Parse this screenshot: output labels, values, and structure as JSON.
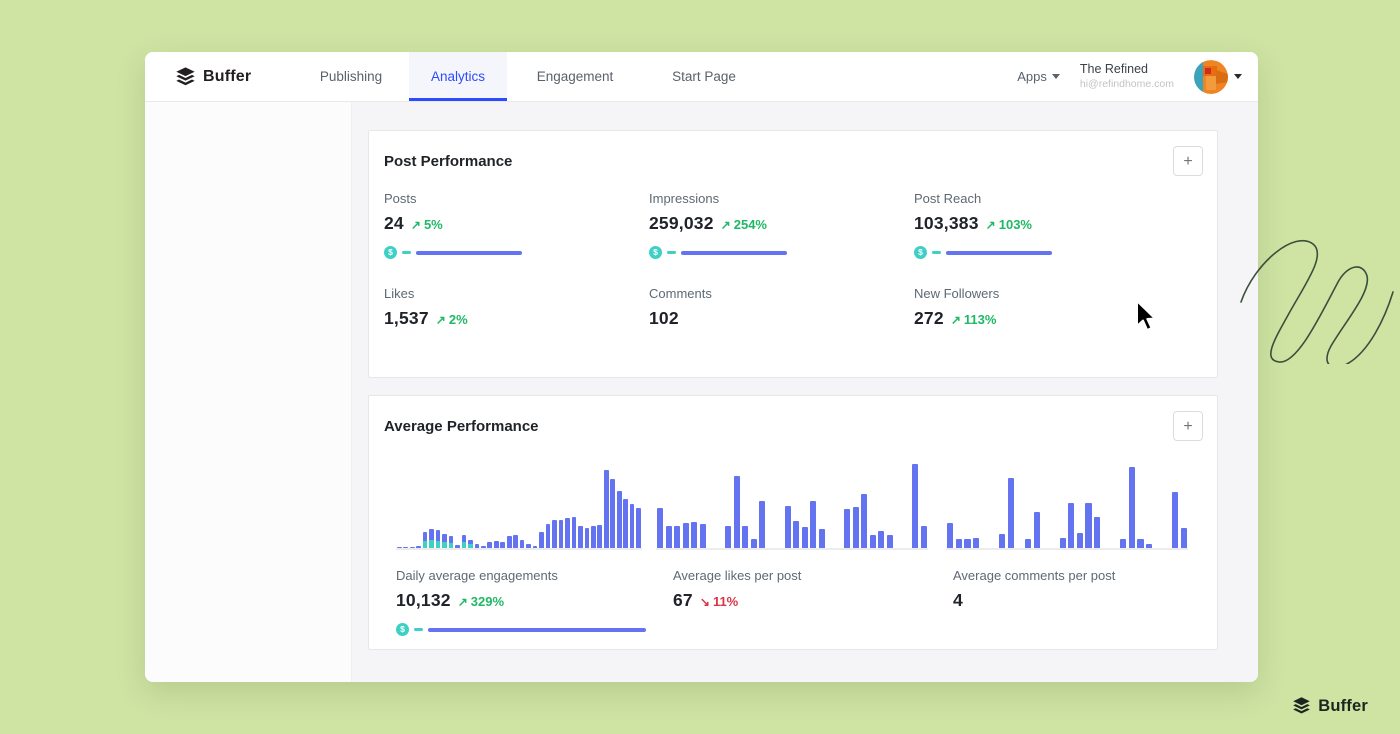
{
  "nav": {
    "brand": "Buffer",
    "tabs": [
      {
        "label": "Publishing",
        "active": false
      },
      {
        "label": "Analytics",
        "active": true
      },
      {
        "label": "Engagement",
        "active": false
      },
      {
        "label": "Start Page",
        "active": false
      }
    ],
    "apps_label": "Apps",
    "account": {
      "name": "The Refined",
      "email": "hi@refindhome.com"
    }
  },
  "post_performance": {
    "title": "Post Performance",
    "add_button_label": "+",
    "metrics": [
      {
        "label": "Posts",
        "value": "24",
        "delta": "5%",
        "direction": "up",
        "sparkline": true
      },
      {
        "label": "Impressions",
        "value": "259,032",
        "delta": "254%",
        "direction": "up",
        "sparkline": true
      },
      {
        "label": "Post Reach",
        "value": "103,383",
        "delta": "103%",
        "direction": "up",
        "sparkline": true
      },
      {
        "label": "Likes",
        "value": "1,537",
        "delta": "2%",
        "direction": "up",
        "sparkline": false
      },
      {
        "label": "Comments",
        "value": "102",
        "delta": null,
        "direction": null,
        "sparkline": false
      },
      {
        "label": "New Followers",
        "value": "272",
        "delta": "113%",
        "direction": "up",
        "sparkline": false
      }
    ]
  },
  "average_performance": {
    "title": "Average Performance",
    "add_button_label": "+",
    "stats": [
      {
        "label": "Daily average engagements",
        "value": "10,132",
        "delta": "329%",
        "direction": "up",
        "sparkline": true
      },
      {
        "label": "Average likes per post",
        "value": "67",
        "delta": "11%",
        "direction": "down",
        "sparkline": false
      },
      {
        "label": "Average comments per post",
        "value": "4",
        "delta": null,
        "direction": null,
        "sparkline": false
      }
    ]
  },
  "chart_data": [
    {
      "type": "bar",
      "title": "Daily average engagements",
      "summary_value": 10132,
      "change_percent": 329,
      "change_direction": "up",
      "ylim": [
        0,
        100
      ],
      "grid": false,
      "note": "v = bar height as % of chart; t = teal stacked segment height %",
      "values": [
        {
          "v": 1
        },
        {
          "v": 1
        },
        {
          "v": 1.5
        },
        {
          "v": 2
        },
        {
          "v": 18,
          "t": 8
        },
        {
          "v": 21,
          "t": 9
        },
        {
          "v": 20,
          "t": 8
        },
        {
          "v": 16,
          "t": 7
        },
        {
          "v": 13,
          "t": 6
        },
        {
          "v": 3
        },
        {
          "v": 14,
          "t": 7
        },
        {
          "v": 9,
          "t": 4
        },
        {
          "v": 5
        },
        {
          "v": 2
        },
        {
          "v": 7
        },
        {
          "v": 8
        },
        {
          "v": 7
        },
        {
          "v": 13
        },
        {
          "v": 14
        },
        {
          "v": 9
        },
        {
          "v": 4
        },
        {
          "v": 2
        },
        {
          "v": 18
        },
        {
          "v": 27
        },
        {
          "v": 31
        },
        {
          "v": 31
        },
        {
          "v": 33
        },
        {
          "v": 34
        },
        {
          "v": 24
        },
        {
          "v": 22
        },
        {
          "v": 24
        },
        {
          "v": 26
        },
        {
          "v": 87
        },
        {
          "v": 77
        },
        {
          "v": 63
        },
        {
          "v": 54
        },
        {
          "v": 49
        },
        {
          "v": 45
        }
      ]
    },
    {
      "type": "bar",
      "title": "Average likes per post",
      "summary_value": 67,
      "change_percent": -11,
      "change_direction": "down",
      "ylim": [
        0,
        100
      ],
      "grid": false,
      "values": [
        {
          "v": 45
        },
        {
          "v": 25
        },
        {
          "v": 25
        },
        {
          "v": 28
        },
        {
          "v": 29
        },
        {
          "v": 27
        },
        {
          "v": 0
        },
        {
          "v": 0
        },
        {
          "v": 25
        },
        {
          "v": 80
        },
        {
          "v": 25
        },
        {
          "v": 10
        },
        {
          "v": 52
        },
        {
          "v": 0
        },
        {
          "v": 0
        },
        {
          "v": 47
        },
        {
          "v": 30
        },
        {
          "v": 23
        },
        {
          "v": 52
        },
        {
          "v": 21
        },
        {
          "v": 0
        },
        {
          "v": 0
        },
        {
          "v": 43
        },
        {
          "v": 46
        },
        {
          "v": 60
        },
        {
          "v": 15
        },
        {
          "v": 19
        },
        {
          "v": 14
        },
        {
          "v": 0
        },
        {
          "v": 0
        },
        {
          "v": 93
        },
        {
          "v": 24
        }
      ]
    },
    {
      "type": "bar",
      "title": "Average comments per post",
      "summary_value": 4,
      "ylim": [
        0,
        100
      ],
      "grid": false,
      "values": [
        {
          "v": 28
        },
        {
          "v": 10
        },
        {
          "v": 10
        },
        {
          "v": 11
        },
        {
          "v": 0
        },
        {
          "v": 0
        },
        {
          "v": 16
        },
        {
          "v": 78
        },
        {
          "v": 0
        },
        {
          "v": 10
        },
        {
          "v": 40
        },
        {
          "v": 0
        },
        {
          "v": 0
        },
        {
          "v": 11
        },
        {
          "v": 50
        },
        {
          "v": 17
        },
        {
          "v": 50
        },
        {
          "v": 35
        },
        {
          "v": 0
        },
        {
          "v": 0
        },
        {
          "v": 10
        },
        {
          "v": 90
        },
        {
          "v": 10
        },
        {
          "v": 4
        },
        {
          "v": 0
        },
        {
          "v": 0
        },
        {
          "v": 62
        },
        {
          "v": 22
        }
      ]
    }
  ],
  "footer": {
    "brand": "Buffer"
  },
  "colors": {
    "background_green": "#cfe4a3",
    "accent_blue": "#2c4bff",
    "bar_blue": "#6473ef",
    "bar_teal": "#3ed0c4",
    "delta_up_green": "#1fb865",
    "delta_down_red": "#dc3446"
  }
}
